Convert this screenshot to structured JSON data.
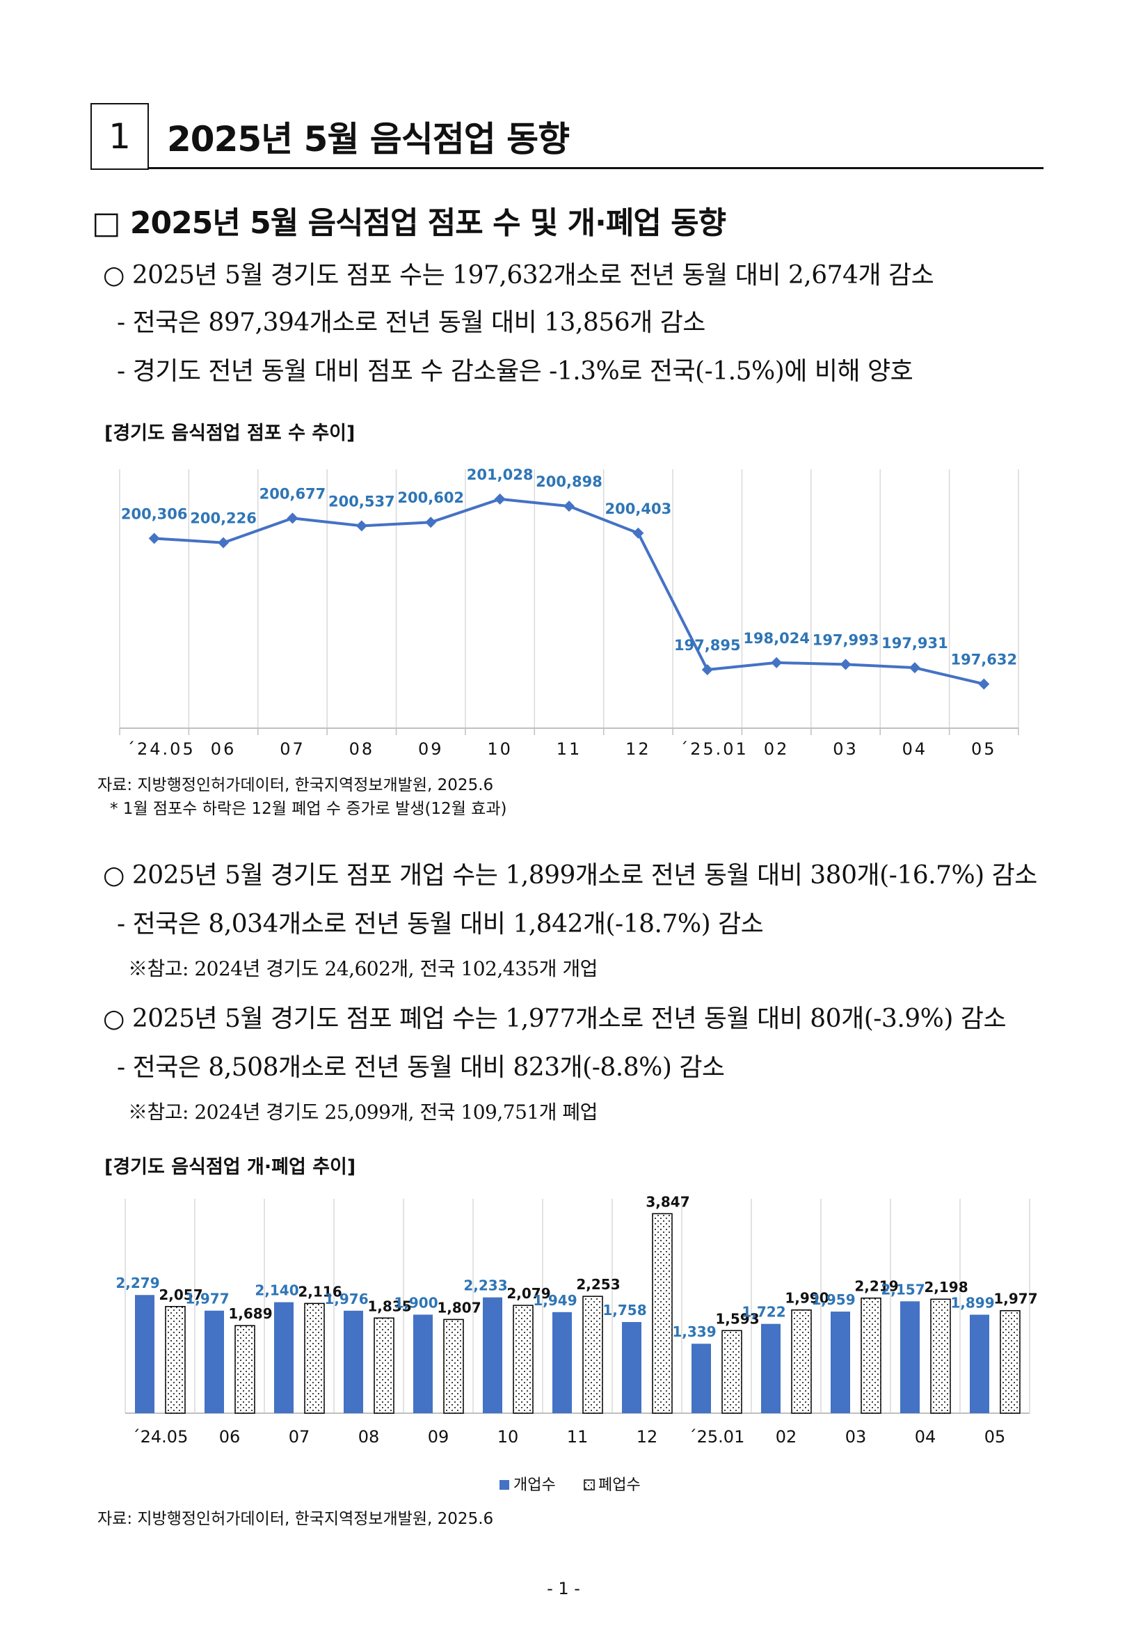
{
  "section": {
    "number": "1",
    "title": "2025년 5월 음식점업 동향"
  },
  "subsection": {
    "heading": "□ 2025년 5월 음식점업 점포 수 및 개·폐업 동향"
  },
  "bullets_stores": [
    "○ 2025년 5월 경기도 점포 수는 197,632개소로 전년 동월 대비 2,674개 감소",
    "- 전국은 897,394개소로 전년 동월 대비 13,856개 감소",
    "- 경기도 전년 동월 대비 점포 수 감소율은 -1.3%로 전국(-1.5%)에 비해 양호"
  ],
  "chart1": {
    "caption": "[경기도 음식점업 점포 수 추이]",
    "source": "자료: 지방행정인허가데이터, 한국지역정보개발원, 2025.6",
    "footnote": "* 1월 점포수 하락은 12월 폐업 수 증가로 발생(12월 효과)"
  },
  "bullets_open_close": [
    "○ 2025년 5월 경기도 점포 개업 수는 1,899개소로 전년 동월 대비 380개(-16.7%) 감소",
    "- 전국은  8,034개소로 전년 동월 대비 1,842개(-18.7%) 감소",
    "※참고: 2024년 경기도 24,602개, 전국 102,435개 개업",
    "○ 2025년 5월 경기도 점포 폐업 수는 1,977개소로 전년 동월 대비 80개(-3.9%) 감소",
    "- 전국은  8,508개소로 전년 동월 대비 823개(-8.8%) 감소",
    "※참고: 2024년 경기도 25,099개, 전국 109,751개 폐업"
  ],
  "chart2": {
    "caption": "[경기도 음식점업 개·폐업 추이]",
    "source": "자료: 지방행정인허가데이터, 한국지역정보개발원, 2025.6"
  },
  "page_number": "- 1 -",
  "colors": {
    "line": "#4472C4",
    "label_blue": "#2E75B6",
    "open_bar": "#4472C4",
    "close_bar_fill": "#ffffff"
  },
  "chart_data": [
    {
      "type": "line",
      "categories": [
        "´24.05",
        "06",
        "07",
        "08",
        "09",
        "10",
        "11",
        "12",
        "´25.01",
        "02",
        "03",
        "04",
        "05"
      ],
      "series": [
        {
          "values": [
            200306,
            200226,
            200677,
            200537,
            200602,
            201028,
            200898,
            200403,
            197895,
            198024,
            197993,
            197931,
            197632
          ]
        }
      ],
      "data_labels": [
        "200,306",
        "200,226",
        "200,677",
        "200,537",
        "200,602",
        "201,028",
        "200,898",
        "200,403",
        "197,895",
        "198,024",
        "197,993",
        "197,931",
        "197,632"
      ],
      "ylim": [
        197000,
        201500
      ],
      "grid": "vertical",
      "marker": "diamond"
    },
    {
      "type": "bar",
      "categories": [
        "´24.05",
        "06",
        "07",
        "08",
        "09",
        "10",
        "11",
        "12",
        "´25.01",
        "02",
        "03",
        "04",
        "05"
      ],
      "series": [
        {
          "name": "개업수",
          "values": [
            2279,
            1977,
            2140,
            1976,
            1900,
            2233,
            1949,
            1758,
            1339,
            1722,
            1959,
            2157,
            1899
          ],
          "labels": [
            "2,279",
            "1,977",
            "2,140",
            "1,976",
            "1,900",
            "2,233",
            "1,949",
            "1,758",
            "1,339",
            "1,722",
            "1,959",
            "2,157",
            "1,899"
          ]
        },
        {
          "name": "폐업수",
          "values": [
            2057,
            1689,
            2116,
            1835,
            1807,
            2079,
            2253,
            3847,
            1593,
            1990,
            2219,
            2198,
            1977
          ],
          "labels": [
            "2,057",
            "1,689",
            "2,116",
            "1,835",
            "1,807",
            "2,079",
            "2,253",
            "3,847",
            "1,593",
            "1,990",
            "2,219",
            "2,198",
            "1,977"
          ]
        }
      ],
      "ylim": [
        0,
        4000
      ],
      "grid": "vertical",
      "legend": "bottom"
    }
  ]
}
